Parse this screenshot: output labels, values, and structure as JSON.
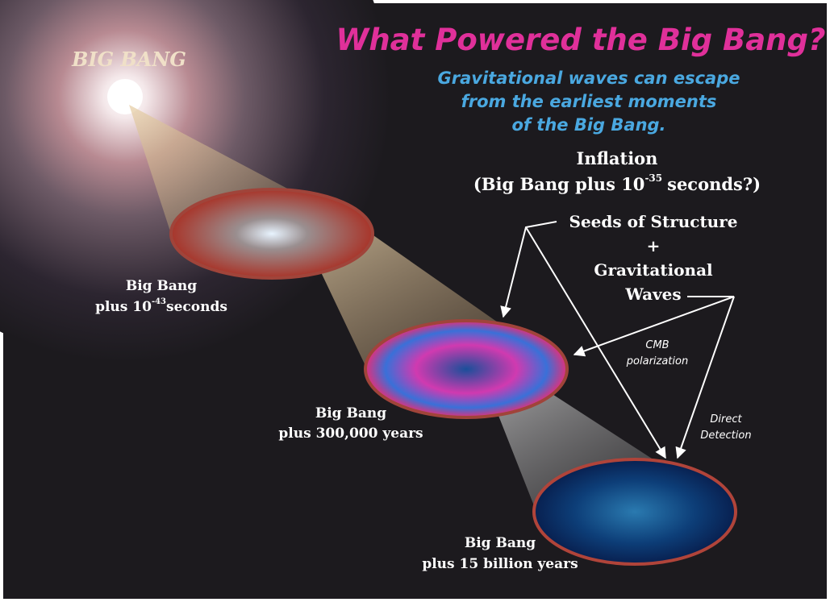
{
  "header": {
    "title": "What Powered the Big Bang?",
    "subtitle": [
      "Gravitational waves can escape",
      "from the earliest moments",
      "of the Big Bang."
    ]
  },
  "origin_label": "BIG BANG",
  "inflation": {
    "line1": "Inflation",
    "line2_before": "(Big Bang plus 10",
    "exponent": "-35",
    "line2_after": "seconds?)"
  },
  "nodes": [
    {
      "line1": "Big Bang",
      "line2_before": "plus 10",
      "exponent": "-43",
      "line2_after": "seconds"
    },
    {
      "line1": "Big Bang",
      "line2": "plus 300,000 years"
    },
    {
      "line1": "Big Bang",
      "line2": "plus 15 billion years"
    }
  ],
  "seeds": [
    "Seeds of Structure",
    "+",
    "Gravitational",
    "Waves"
  ],
  "arrow_labels": {
    "cmb": [
      "CMB",
      "polarization"
    ],
    "direct": [
      "Direct",
      "Detection"
    ]
  }
}
